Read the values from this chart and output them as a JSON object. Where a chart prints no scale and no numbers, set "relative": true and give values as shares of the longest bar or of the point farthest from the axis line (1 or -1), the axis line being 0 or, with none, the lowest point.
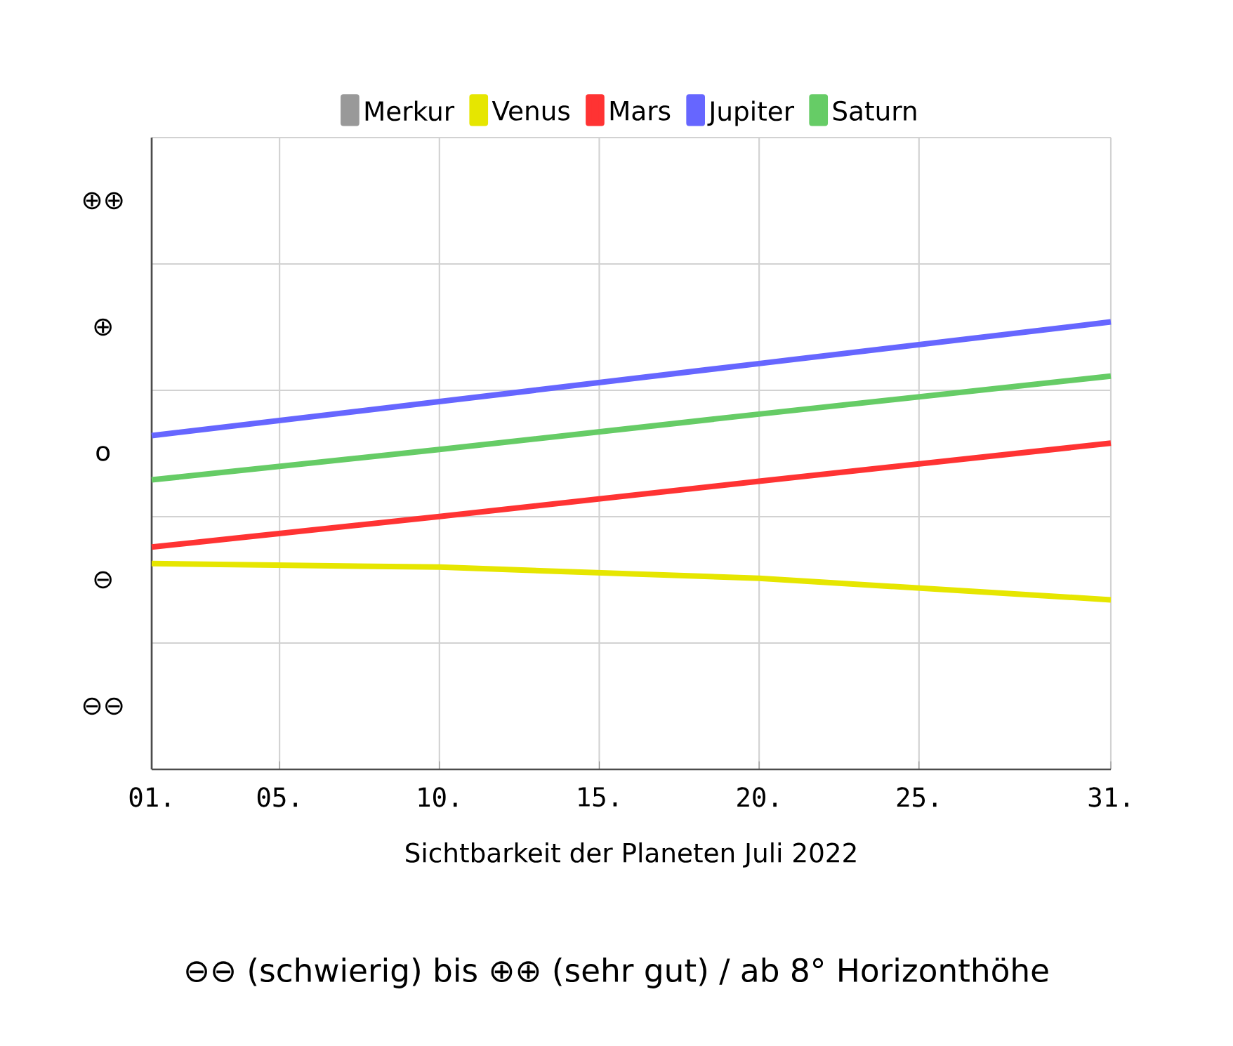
{
  "chart_data": {
    "type": "line",
    "xlabel": "Sichtbarkeit der Planeten Juli 2022",
    "annotations": [
      "⊖⊖ (schwierig) bis ⊕⊕ (sehr gut) / ab 8° Horizonthöhe",
      "⊕⊕",
      "⊕",
      "o",
      "⊖",
      "⊖⊖"
    ],
    "relative": true,
    "x": [
      1,
      10,
      20,
      31
    ],
    "xlim": [
      1,
      31
    ],
    "xticks": [
      {
        "value": 1,
        "label": "01."
      },
      {
        "value": 5,
        "label": "05."
      },
      {
        "value": 10,
        "label": "10."
      },
      {
        "value": 15,
        "label": "15."
      },
      {
        "value": 20,
        "label": "20."
      },
      {
        "value": 25,
        "label": "25."
      },
      {
        "value": 31,
        "label": "31."
      }
    ],
    "grid": true,
    "legend": "top",
    "marker": "none",
    "line_style": "solid",
    "series": [
      {
        "name": "Merkur",
        "color": "#999999",
        "values": [
          null,
          null,
          null,
          null
        ]
      },
      {
        "name": "Venus",
        "color": "#e6e600",
        "values": [
          0.46,
          0.452,
          0.427,
          0.379
        ]
      },
      {
        "name": "Mars",
        "color": "#ff3333",
        "values": [
          0.497,
          0.565,
          0.644,
          0.729
        ]
      },
      {
        "name": "Jupiter",
        "color": "#6666ff",
        "values": [
          0.746,
          0.822,
          0.907,
          1
        ]
      },
      {
        "name": "Saturn",
        "color": "#66cc66",
        "values": [
          0.647,
          0.715,
          0.794,
          0.879
        ]
      }
    ]
  }
}
